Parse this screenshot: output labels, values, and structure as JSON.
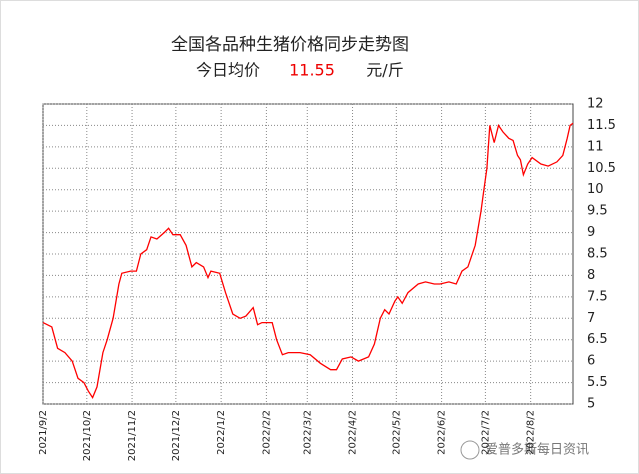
{
  "chart_data": {
    "type": "line",
    "title": "全国各品种生猪价格同步走势图",
    "price_label": "今日均价",
    "price": 11.55,
    "price_unit": "元/斤",
    "watermark": "爱普多斯每日资讯",
    "x": [
      "2021/9/2",
      "2021/9/8",
      "2021/9/12",
      "2021/9/17",
      "2021/9/22",
      "2021/9/26",
      "2021/9/30",
      "2021/10/3",
      "2021/10/6",
      "2021/10/9",
      "2021/10/13",
      "2021/10/16",
      "2021/10/20",
      "2021/10/24",
      "2021/10/26",
      "2021/11/1",
      "2021/11/5",
      "2021/11/8",
      "2021/11/12",
      "2021/11/15",
      "2021/11/19",
      "2021/11/24",
      "2021/11/27",
      "2021/11/30",
      "2021/12/5",
      "2021/12/9",
      "2021/12/13",
      "2021/12/16",
      "2021/12/21",
      "2021/12/24",
      "2021/12/26",
      "2022/1/1",
      "2022/1/5",
      "2022/1/10",
      "2022/1/15",
      "2022/1/19",
      "2022/1/24",
      "2022/1/27",
      "2022/1/30",
      "2022/2/6",
      "2022/2/9",
      "2022/2/13",
      "2022/2/17",
      "2022/2/25",
      "2022/3/4",
      "2022/3/11",
      "2022/3/18",
      "2022/3/22",
      "2022/3/26",
      "2022/4/1",
      "2022/4/6",
      "2022/4/13",
      "2022/4/17",
      "2022/4/21",
      "2022/4/24",
      "2022/4/27",
      "2022/5/1",
      "2022/5/3",
      "2022/5/6",
      "2022/5/10",
      "2022/5/17",
      "2022/5/22",
      "2022/5/28",
      "2022/6/1",
      "2022/6/7",
      "2022/6/12",
      "2022/6/16",
      "2022/6/20",
      "2022/6/25",
      "2022/6/29",
      "2022/7/1",
      "2022/7/3",
      "2022/7/5",
      "2022/7/8",
      "2022/7/11",
      "2022/7/14",
      "2022/7/18",
      "2022/7/21",
      "2022/7/24",
      "2022/7/26",
      "2022/7/28",
      "2022/7/31",
      "2022/8/3",
      "2022/8/9",
      "2022/8/14",
      "2022/8/20",
      "2022/8/24",
      "2022/8/27",
      "2022/8/29",
      "2022/8/31"
    ],
    "series": [
      {
        "color": "#ff0000",
        "values": [
          6.9,
          6.8,
          6.3,
          6.2,
          6.0,
          5.6,
          5.5,
          5.3,
          5.15,
          5.4,
          6.2,
          6.5,
          7.0,
          7.8,
          8.05,
          8.1,
          8.1,
          8.5,
          8.6,
          8.9,
          8.85,
          9.0,
          9.1,
          8.95,
          8.95,
          8.7,
          8.2,
          8.3,
          8.2,
          7.95,
          8.1,
          8.05,
          7.6,
          7.1,
          7.0,
          7.05,
          7.25,
          6.85,
          6.9,
          6.9,
          6.5,
          6.15,
          6.2,
          6.2,
          6.15,
          5.95,
          5.8,
          5.8,
          6.05,
          6.1,
          6.0,
          6.1,
          6.4,
          7.0,
          7.2,
          7.1,
          7.4,
          7.5,
          7.35,
          7.6,
          7.8,
          7.85,
          7.8,
          7.8,
          7.85,
          7.8,
          8.1,
          8.2,
          8.7,
          9.5,
          10.0,
          10.5,
          11.5,
          11.1,
          11.5,
          11.35,
          11.2,
          11.15,
          10.8,
          10.7,
          10.35,
          10.6,
          10.75,
          10.6,
          10.55,
          10.65,
          10.8,
          11.2,
          11.5,
          11.55
        ]
      }
    ],
    "xlim": [
      "2021/9/2",
      "2022/8/31"
    ],
    "xticks": [
      "2021/9/2",
      "2021/10/2",
      "2021/11/2",
      "2021/12/2",
      "2022/1/2",
      "2022/2/2",
      "2022/3/2",
      "2022/4/2",
      "2022/5/2",
      "2022/6/2",
      "2022/7/2",
      "2022/8/2"
    ],
    "ylim": [
      5,
      12
    ],
    "yticks": [
      5,
      5.5,
      6,
      6.5,
      7,
      7.5,
      8,
      8.5,
      9,
      9.5,
      10,
      10.5,
      11,
      11.5,
      12
    ],
    "grid": true
  }
}
